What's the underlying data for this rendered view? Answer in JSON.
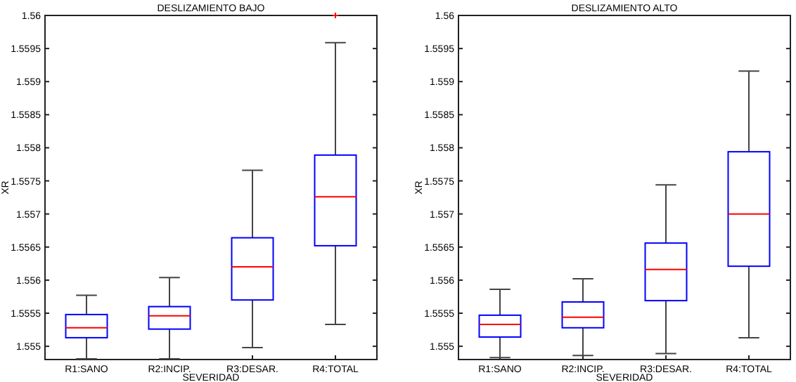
{
  "chart_data": [
    {
      "type": "box",
      "title": "DESLIZAMIENTO BAJO",
      "xlabel": "SEVERIDAD",
      "ylabel": "XR",
      "categories": [
        "R1:SANO",
        "R2:INCIP.",
        "R3:DESAR.",
        "R4:TOTAL"
      ],
      "color": "#0000ff",
      "ylim": [
        1.5548,
        1.56
      ],
      "yticks": [
        1.555,
        1.5555,
        1.556,
        1.5565,
        1.557,
        1.5575,
        1.558,
        1.5585,
        1.559,
        1.5595,
        1.56
      ],
      "boxes": [
        {
          "low": 1.55481,
          "q1": 1.55513,
          "median": 1.55528,
          "q3": 1.55548,
          "high": 1.55577
        },
        {
          "low": 1.55481,
          "q1": 1.55526,
          "median": 1.55546,
          "q3": 1.5556,
          "high": 1.55604
        },
        {
          "low": 1.55498,
          "q1": 1.5557,
          "median": 1.5562,
          "q3": 1.55664,
          "high": 1.55766
        },
        {
          "low": 1.55533,
          "q1": 1.55652,
          "median": 1.55726,
          "q3": 1.55789,
          "high": 1.55959,
          "outliers": [
            1.56
          ]
        }
      ]
    },
    {
      "type": "box",
      "title": "DESLIZAMIENTO ALTO",
      "xlabel": "SEVERIDAD",
      "ylabel": "XR",
      "categories": [
        "R1:SANO",
        "R2:INCIP.",
        "R3:DESAR.",
        "R4:TOTAL"
      ],
      "color": "#0000ff",
      "ylim": [
        1.5548,
        1.56
      ],
      "yticks": [
        1.555,
        1.5555,
        1.556,
        1.5565,
        1.557,
        1.5575,
        1.558,
        1.5585,
        1.559,
        1.5595,
        1.56
      ],
      "boxes": [
        {
          "low": 1.55483,
          "q1": 1.55514,
          "median": 1.55533,
          "q3": 1.55547,
          "high": 1.55586
        },
        {
          "low": 1.55486,
          "q1": 1.55528,
          "median": 1.55544,
          "q3": 1.55567,
          "high": 1.55602
        },
        {
          "low": 1.55489,
          "q1": 1.55569,
          "median": 1.55616,
          "q3": 1.55656,
          "high": 1.55744
        },
        {
          "low": 1.55513,
          "q1": 1.55621,
          "median": 1.557,
          "q3": 1.55794,
          "high": 1.55916
        }
      ]
    }
  ]
}
